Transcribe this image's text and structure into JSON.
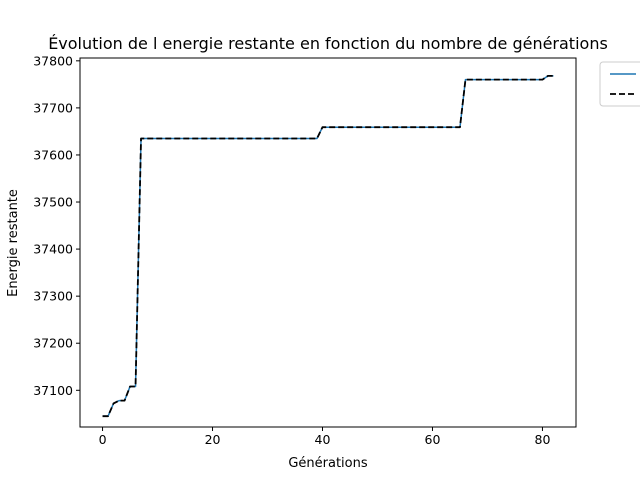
{
  "chart_data": {
    "type": "line",
    "title": "Évolution de l energie restante en fonction du nombre de générations",
    "xlabel": "Générations",
    "ylabel": "Energie restante",
    "xlim": [
      -4.1,
      86.1
    ],
    "ylim": [
      37022,
      37806
    ],
    "x_ticks": [
      0,
      20,
      40,
      60,
      80
    ],
    "y_ticks": [
      37100,
      37200,
      37300,
      37400,
      37500,
      37600,
      37700,
      37800
    ],
    "grid": false,
    "legend_position": "upper-right-outside",
    "series": [
      {
        "color": "#1f77b4",
        "linestyle": "solid",
        "x": [
          0,
          1,
          2,
          3,
          4,
          5,
          6,
          7,
          8,
          9,
          10,
          11,
          12,
          13,
          14,
          15,
          16,
          17,
          18,
          19,
          20,
          21,
          22,
          23,
          24,
          25,
          26,
          27,
          28,
          29,
          30,
          31,
          32,
          33,
          34,
          35,
          36,
          37,
          38,
          39,
          40,
          41,
          42,
          43,
          44,
          45,
          46,
          47,
          48,
          49,
          50,
          51,
          52,
          53,
          54,
          55,
          56,
          57,
          58,
          59,
          60,
          61,
          62,
          63,
          64,
          65,
          66,
          67,
          68,
          69,
          70,
          71,
          72,
          73,
          74,
          75,
          76,
          77,
          78,
          79,
          80,
          81,
          82
        ],
        "y": [
          37045,
          37045,
          37072,
          37078,
          37078,
          37108,
          37108,
          37635,
          37635,
          37635,
          37635,
          37635,
          37635,
          37635,
          37635,
          37635,
          37635,
          37635,
          37635,
          37635,
          37635,
          37635,
          37635,
          37635,
          37635,
          37635,
          37635,
          37635,
          37635,
          37635,
          37635,
          37635,
          37635,
          37635,
          37635,
          37635,
          37635,
          37635,
          37635,
          37635,
          37659,
          37659,
          37659,
          37659,
          37659,
          37659,
          37659,
          37659,
          37659,
          37659,
          37659,
          37659,
          37659,
          37659,
          37659,
          37659,
          37659,
          37659,
          37659,
          37659,
          37659,
          37659,
          37659,
          37659,
          37659,
          37659,
          37760,
          37760,
          37760,
          37760,
          37760,
          37760,
          37760,
          37760,
          37760,
          37760,
          37760,
          37760,
          37760,
          37760,
          37760,
          37768,
          37768
        ]
      },
      {
        "color": "#000000",
        "linestyle": "dashed",
        "x": [
          0,
          1,
          2,
          3,
          4,
          5,
          6,
          7,
          8,
          9,
          10,
          11,
          12,
          13,
          14,
          15,
          16,
          17,
          18,
          19,
          20,
          21,
          22,
          23,
          24,
          25,
          26,
          27,
          28,
          29,
          30,
          31,
          32,
          33,
          34,
          35,
          36,
          37,
          38,
          39,
          40,
          41,
          42,
          43,
          44,
          45,
          46,
          47,
          48,
          49,
          50,
          51,
          52,
          53,
          54,
          55,
          56,
          57,
          58,
          59,
          60,
          61,
          62,
          63,
          64,
          65,
          66,
          67,
          68,
          69,
          70,
          71,
          72,
          73,
          74,
          75,
          76,
          77,
          78,
          79,
          80,
          81,
          82
        ],
        "y": [
          37045,
          37045,
          37072,
          37078,
          37078,
          37108,
          37108,
          37635,
          37635,
          37635,
          37635,
          37635,
          37635,
          37635,
          37635,
          37635,
          37635,
          37635,
          37635,
          37635,
          37635,
          37635,
          37635,
          37635,
          37635,
          37635,
          37635,
          37635,
          37635,
          37635,
          37635,
          37635,
          37635,
          37635,
          37635,
          37635,
          37635,
          37635,
          37635,
          37635,
          37659,
          37659,
          37659,
          37659,
          37659,
          37659,
          37659,
          37659,
          37659,
          37659,
          37659,
          37659,
          37659,
          37659,
          37659,
          37659,
          37659,
          37659,
          37659,
          37659,
          37659,
          37659,
          37659,
          37659,
          37659,
          37659,
          37760,
          37760,
          37760,
          37760,
          37760,
          37760,
          37760,
          37760,
          37760,
          37760,
          37760,
          37760,
          37760,
          37760,
          37760,
          37768,
          37768
        ]
      }
    ]
  }
}
